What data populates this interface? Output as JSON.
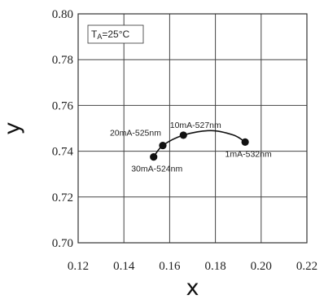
{
  "chart_data": {
    "type": "line",
    "xlabel": "x",
    "ylabel": "y",
    "xlim": [
      0.12,
      0.22
    ],
    "ylim": [
      0.7,
      0.8
    ],
    "x_ticks": [
      "0.12",
      "0.14",
      "0.16",
      "0.18",
      "0.20",
      "0.22"
    ],
    "y_ticks": [
      "0.70",
      "0.72",
      "0.74",
      "0.76",
      "0.78",
      "0.80"
    ],
    "grid": true,
    "condition": {
      "prefix": "T",
      "sub": "A",
      "suffix": "=25°C"
    },
    "points": [
      {
        "x": 0.153,
        "y": 0.7375,
        "label": "30mA-524nm",
        "label_pos": "below"
      },
      {
        "x": 0.157,
        "y": 0.7425,
        "label": "20mA-525nm",
        "label_pos": "above-left"
      },
      {
        "x": 0.166,
        "y": 0.747,
        "label": "10mA-527nm",
        "label_pos": "above"
      },
      {
        "x": 0.193,
        "y": 0.744,
        "label": "1mA-532nm",
        "label_pos": "below"
      }
    ],
    "curve": [
      [
        0.153,
        0.7375
      ],
      [
        0.157,
        0.7425
      ],
      [
        0.166,
        0.747
      ],
      [
        0.178,
        0.749
      ],
      [
        0.188,
        0.747
      ],
      [
        0.193,
        0.744
      ]
    ]
  }
}
